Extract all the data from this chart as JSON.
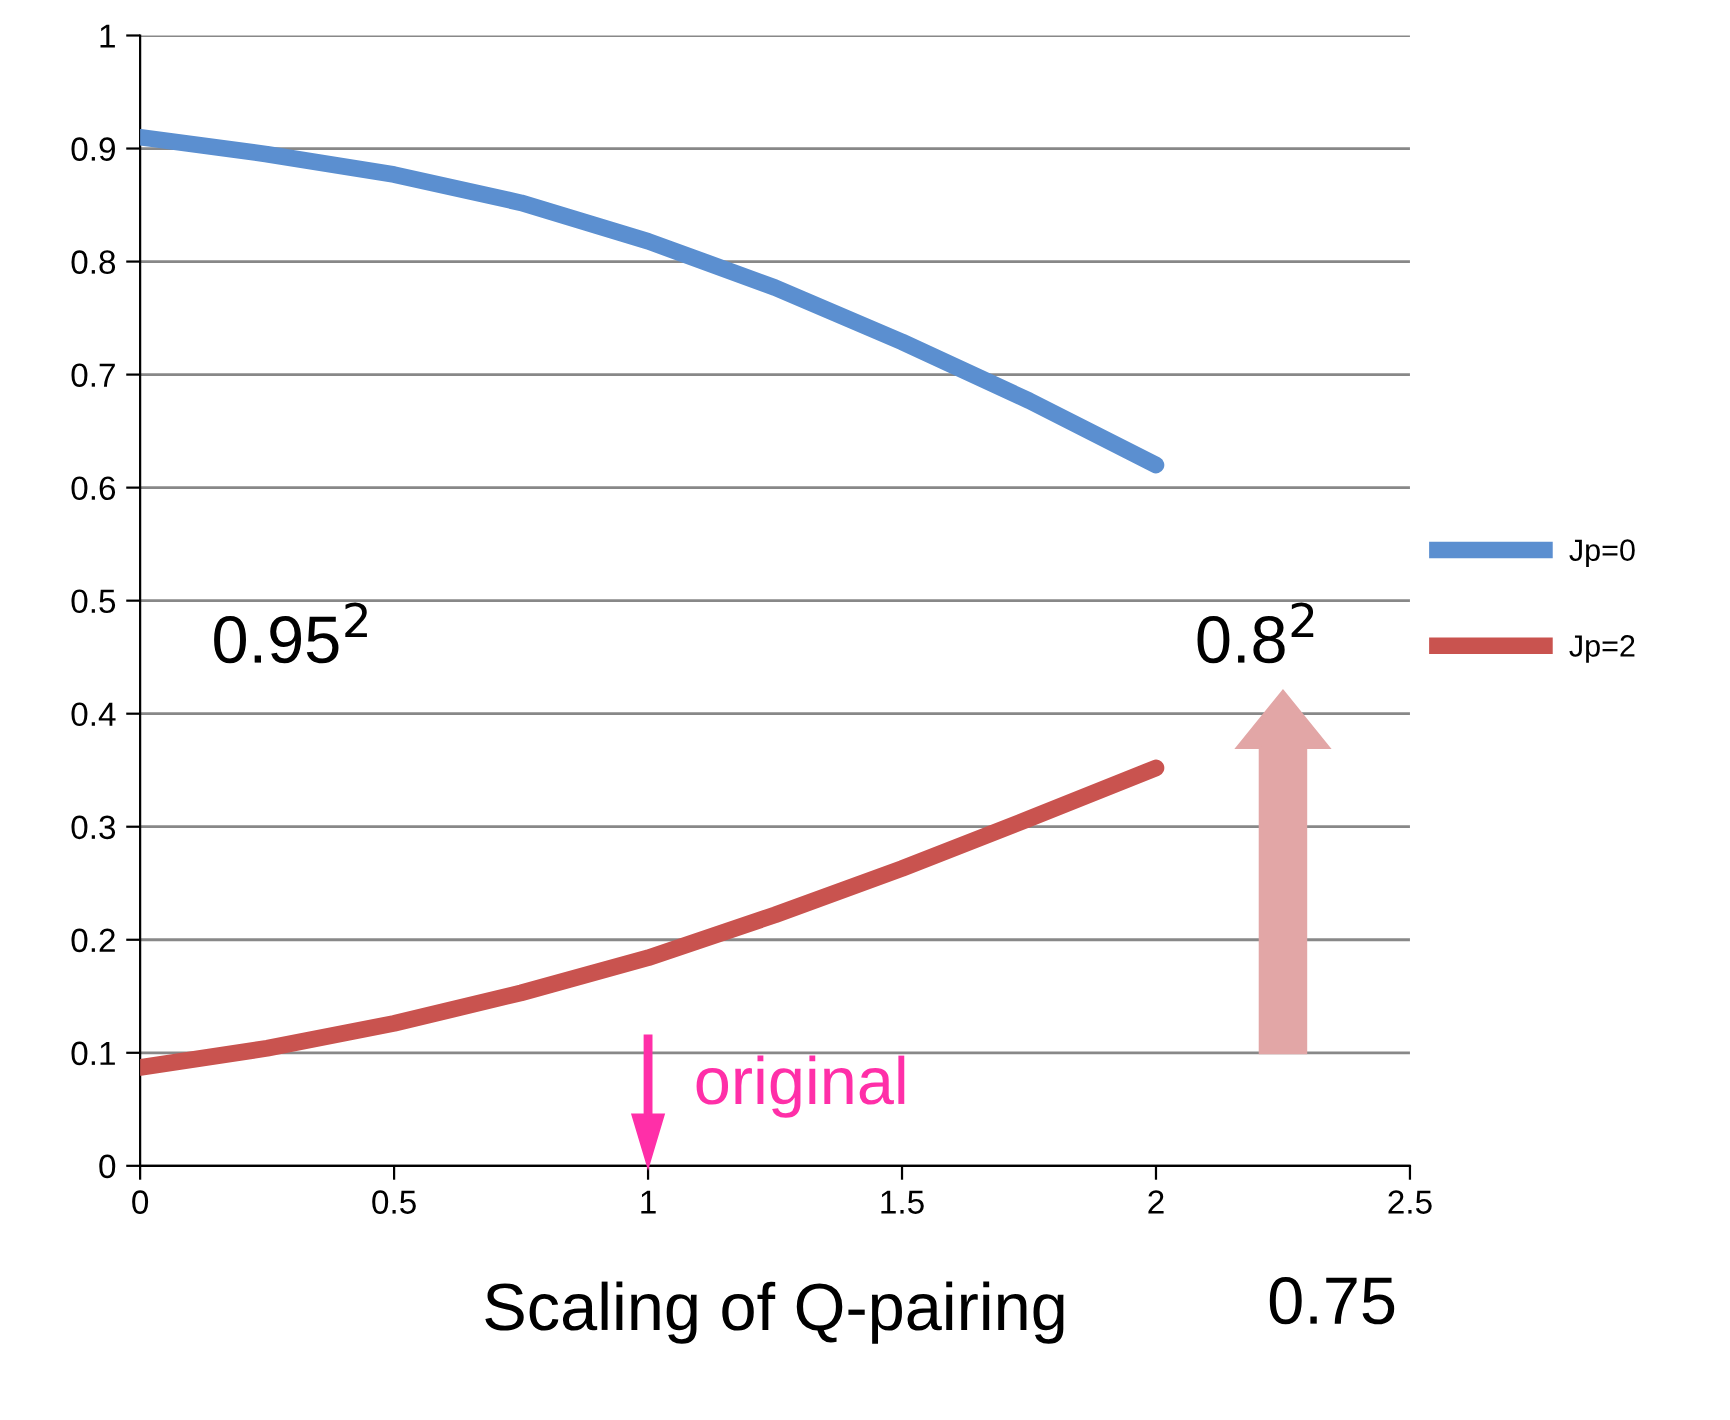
{
  "chart_data": {
    "type": "line",
    "xlabel": "Scaling of Q-pairing",
    "x": [
      0,
      0.25,
      0.5,
      0.75,
      1,
      1.25,
      1.5,
      1.75,
      2
    ],
    "series": [
      {
        "name": "Jp=0",
        "color": "#5b8fd0",
        "values": [
          0.91,
          0.895,
          0.877,
          0.852,
          0.818,
          0.777,
          0.729,
          0.677,
          0.62
        ]
      },
      {
        "name": "Jp=2",
        "color": "#c9534f",
        "values": [
          0.087,
          0.104,
          0.126,
          0.153,
          0.184,
          0.222,
          0.263,
          0.307,
          0.352
        ]
      }
    ],
    "xlim": [
      0,
      2.5
    ],
    "xticks": [
      0,
      0.5,
      1,
      1.5,
      2,
      2.5
    ],
    "ylim": [
      0,
      1
    ],
    "yticks": [
      0,
      0.1,
      0.2,
      0.3,
      0.4,
      0.5,
      0.6,
      0.7,
      0.8,
      0.9,
      1
    ],
    "grid": "y",
    "legend": "right",
    "marker": "none",
    "line_style": "solid",
    "annotations": [
      "0.95$^{2}$",
      "0.8$^{2}$",
      "original",
      "0.75"
    ]
  }
}
